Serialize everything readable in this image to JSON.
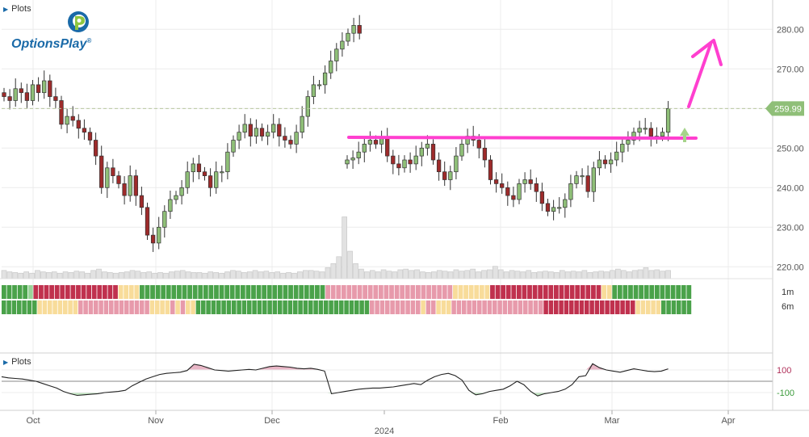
{
  "window": {
    "title": "Plots"
  },
  "brand": {
    "name": "OptionsPlay",
    "mark": "®",
    "primary": "#1a6aa8",
    "accent": "#8ec63f"
  },
  "indicator_panel": {
    "title": "Plots"
  },
  "colors": {
    "up": "#8fbf78",
    "down": "#9e2b2b",
    "volume": "#e2e2e2",
    "magenta": "#ff3fcf",
    "price_tag": "#8fbf78",
    "trend_green": "#4aa24a",
    "trend_lightgreen": "#9ad49a",
    "trend_yellow": "#f8dc9a",
    "trend_pink": "#e79aab",
    "trend_red": "#c0314e",
    "osc_pos": "#e8b6c6",
    "osc_neg": "#bfe3bf"
  },
  "chart_data": [
    {
      "type": "candlestick",
      "ylim": [
        217,
        287
      ],
      "y_ticks": [
        "220.00",
        "230.00",
        "240.00",
        "250.00",
        "260.00",
        "270.00",
        "280.00"
      ],
      "x_ticks": [
        "Oct",
        "Nov",
        "Dec",
        "2024",
        "Feb",
        "Mar",
        "Apr"
      ],
      "year_label": "2024",
      "last_price": "259.99",
      "last_price_value": 259.99,
      "resistance_level": 252.5,
      "grid": true,
      "closes": [
        263,
        262,
        265,
        264,
        262,
        266,
        264,
        267,
        263,
        262,
        256,
        258,
        257,
        255,
        254,
        252,
        248,
        240,
        245,
        243,
        241,
        238,
        243,
        238,
        235,
        228,
        226,
        230,
        234,
        237,
        238,
        240,
        244,
        246,
        244,
        243,
        240,
        244,
        244,
        249,
        252,
        254,
        256,
        253,
        255,
        253,
        254,
        256,
        253,
        252,
        251,
        254,
        258,
        263,
        266,
        266,
        269,
        272,
        275,
        277,
        279,
        281,
        279
      ],
      "closes_after_gap": [
        247,
        247.5,
        249,
        251,
        252,
        251,
        252.5,
        248,
        246,
        245,
        247,
        246,
        248,
        250,
        251,
        247,
        244,
        242,
        244,
        248,
        251,
        253,
        252,
        250,
        247,
        242,
        241,
        240,
        238,
        237,
        241,
        242,
        241,
        239,
        236,
        234,
        235,
        235,
        237,
        241,
        243,
        243,
        239,
        245,
        247,
        246,
        247,
        249,
        251,
        252,
        254,
        255,
        255,
        253,
        253,
        254,
        259.99
      ],
      "volume_rel": [
        0.12,
        0.1,
        0.09,
        0.08,
        0.1,
        0.08,
        0.12,
        0.1,
        0.09,
        0.1,
        0.08,
        0.1,
        0.09,
        0.11,
        0.1,
        0.08,
        0.12,
        0.14,
        0.1,
        0.09,
        0.08,
        0.09,
        0.1,
        0.12,
        0.11,
        0.09,
        0.1,
        0.08,
        0.09,
        0.08,
        0.1,
        0.11,
        0.12,
        0.1,
        0.09,
        0.09,
        0.08,
        0.1,
        0.09,
        0.08,
        0.1,
        0.12,
        0.11,
        0.09,
        0.1,
        0.12,
        0.1,
        0.11,
        0.09,
        0.1,
        0.08,
        0.09,
        0.08,
        0.1,
        0.12,
        0.12,
        0.11,
        0.1,
        0.16,
        0.22,
        0.32,
        0.9,
        0.4,
        0.22,
        0.14,
        0.1,
        0.12,
        0.1,
        0.13,
        0.11,
        0.1,
        0.13,
        0.14,
        0.12,
        0.13,
        0.1,
        0.09,
        0.1,
        0.12,
        0.11,
        0.1,
        0.13,
        0.11,
        0.12,
        0.14,
        0.1,
        0.12,
        0.13,
        0.18,
        0.13,
        0.1,
        0.12,
        0.11,
        0.1,
        0.12,
        0.09,
        0.1,
        0.11,
        0.1,
        0.09,
        0.12,
        0.1,
        0.11,
        0.1,
        0.12,
        0.09,
        0.1,
        0.11,
        0.1,
        0.12,
        0.14,
        0.12,
        0.1,
        0.12,
        0.13,
        0.16,
        0.12,
        0.13,
        0.11,
        0.12
      ]
    },
    {
      "type": "heatmap",
      "rows": [
        {
          "name": "1m",
          "cells": "GGGGGgRRRRRRRRRRRRRRRRYYYYGGGGGGGGGGGGGGGGGGGGGGGGGGGGGGGGGGGPPPPPPPPPPPPPPPPPPPPPPPPYYYYYYYRRRRRRRRRRRRRRRRRRRRRYYGGGGGGGGGGGGGGG"
        },
        {
          "name": "6m",
          "cells": "GGGGGGGYYYYYYYYPPPPPPPPPPPPPPYYYYPYPYYGGGGGGGGGGGGGGGGGGGGGGGGGGGGGGGGGGPPPPPPPPPPYPPYYYPPPPPPPPPPPPPPPPPPRRRRRRRRRRRRRRRRRRYYYYYGGGGGG"
        }
      ]
    },
    {
      "type": "area",
      "y_ticks": [
        "100",
        "-100"
      ],
      "values": [
        40,
        30,
        25,
        20,
        10,
        0,
        -20,
        -40,
        -60,
        -90,
        -110,
        -125,
        -120,
        -115,
        -110,
        -100,
        -95,
        -90,
        -80,
        -40,
        -10,
        20,
        40,
        60,
        70,
        75,
        80,
        95,
        150,
        140,
        120,
        100,
        95,
        90,
        95,
        100,
        105,
        100,
        115,
        130,
        135,
        130,
        125,
        115,
        110,
        115,
        105,
        90,
        -110,
        -100,
        -90,
        -80,
        -70,
        -65,
        -60,
        -60,
        -55,
        -50,
        -40,
        -30,
        -20,
        -30,
        10,
        40,
        60,
        70,
        50,
        10,
        -80,
        -120,
        -110,
        -90,
        -80,
        -70,
        -40,
        0,
        -30,
        -90,
        -130,
        -110,
        -100,
        -90,
        -70,
        -30,
        40,
        50,
        155,
        120,
        100,
        90,
        80,
        95,
        110,
        100,
        90,
        85,
        90,
        110
      ]
    }
  ]
}
